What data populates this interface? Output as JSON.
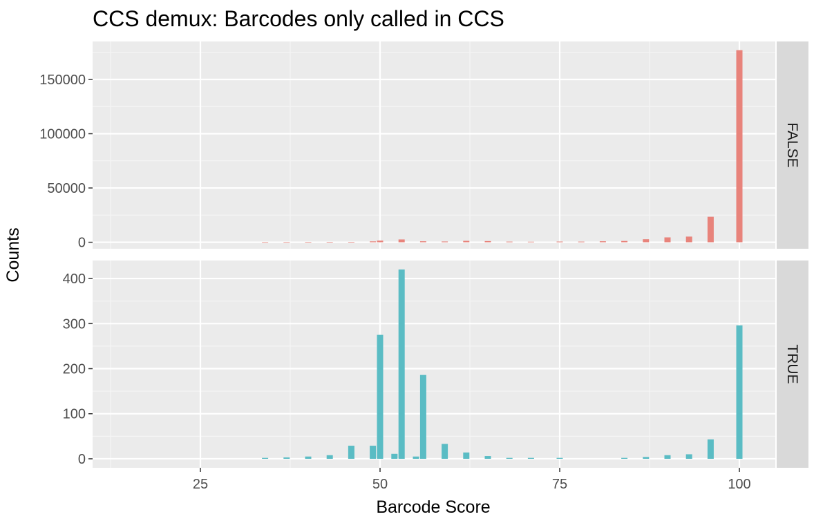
{
  "chart_data": {
    "type": "bar",
    "title": "CCS demux: Barcodes only called in CCS",
    "xlabel": "Barcode Score",
    "ylabel": "Counts",
    "xlim": [
      10,
      105
    ],
    "x_ticks": [
      25,
      50,
      75,
      100
    ],
    "grid": true,
    "legend": "none",
    "facets": [
      {
        "label": "FALSE",
        "color": "#E8837B",
        "ylim": [
          -6000,
          185000
        ],
        "y_ticks": [
          0,
          50000,
          100000,
          150000
        ],
        "bars": [
          {
            "x": 34,
            "y": 100
          },
          {
            "x": 37,
            "y": 150
          },
          {
            "x": 40,
            "y": 200
          },
          {
            "x": 43,
            "y": 250
          },
          {
            "x": 46,
            "y": 350
          },
          {
            "x": 49,
            "y": 800
          },
          {
            "x": 50,
            "y": 1500
          },
          {
            "x": 53,
            "y": 2600
          },
          {
            "x": 56,
            "y": 900
          },
          {
            "x": 59,
            "y": 700
          },
          {
            "x": 62,
            "y": 1300
          },
          {
            "x": 65,
            "y": 1100
          },
          {
            "x": 68,
            "y": 600
          },
          {
            "x": 71,
            "y": 500
          },
          {
            "x": 75,
            "y": 650
          },
          {
            "x": 78,
            "y": 600
          },
          {
            "x": 81,
            "y": 900
          },
          {
            "x": 84,
            "y": 1200
          },
          {
            "x": 87,
            "y": 2800
          },
          {
            "x": 90,
            "y": 4500
          },
          {
            "x": 93,
            "y": 5200
          },
          {
            "x": 96,
            "y": 23500
          },
          {
            "x": 100,
            "y": 177000
          }
        ]
      },
      {
        "label": "TRUE",
        "color": "#5ABCC4",
        "ylim": [
          -20,
          440
        ],
        "y_ticks": [
          0,
          100,
          200,
          300,
          400
        ],
        "bars": [
          {
            "x": 34,
            "y": 2
          },
          {
            "x": 37,
            "y": 3
          },
          {
            "x": 40,
            "y": 5
          },
          {
            "x": 43,
            "y": 8
          },
          {
            "x": 46,
            "y": 29
          },
          {
            "x": 49,
            "y": 29
          },
          {
            "x": 50,
            "y": 275
          },
          {
            "x": 52,
            "y": 11
          },
          {
            "x": 53,
            "y": 420
          },
          {
            "x": 55,
            "y": 5
          },
          {
            "x": 56,
            "y": 186
          },
          {
            "x": 59,
            "y": 33
          },
          {
            "x": 62,
            "y": 14
          },
          {
            "x": 65,
            "y": 6
          },
          {
            "x": 68,
            "y": 2
          },
          {
            "x": 71,
            "y": 2
          },
          {
            "x": 75,
            "y": 2
          },
          {
            "x": 84,
            "y": 2
          },
          {
            "x": 87,
            "y": 4
          },
          {
            "x": 90,
            "y": 8
          },
          {
            "x": 93,
            "y": 10
          },
          {
            "x": 96,
            "y": 43
          },
          {
            "x": 100,
            "y": 296
          }
        ]
      }
    ]
  },
  "style": {
    "panel_bg": "#EBEBEB",
    "strip_bg": "#D9D9D9",
    "grid_major": "#FFFFFF",
    "grid_minor": "#F5F5F5",
    "axis_text": "#4D4D4D"
  }
}
